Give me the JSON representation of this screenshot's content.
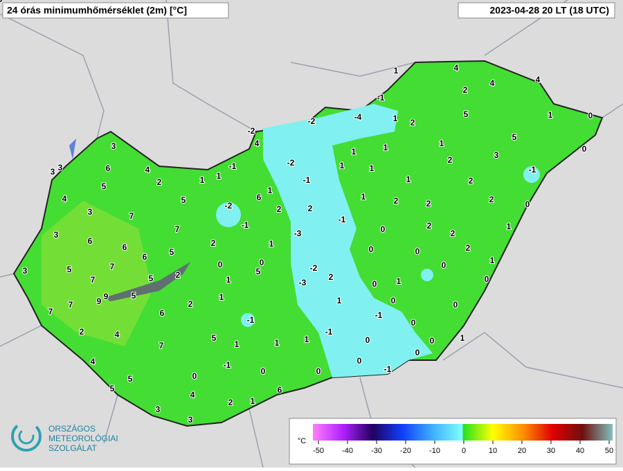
{
  "title": "24 órás minimumhőmérséklet (2m) [°C]",
  "timestamp": "2023-04-28 20 LT (18 UTC)",
  "logo": {
    "line1": "ORSZÁGOS",
    "line2": "METEOROLÓGIAI",
    "line3": "SZOLGÁLAT"
  },
  "colorbar": {
    "unit": "°C",
    "ticks": [
      -50,
      -40,
      -30,
      -20,
      -10,
      0,
      10,
      20,
      30,
      40,
      50
    ]
  },
  "stations": [
    1,
    4,
    2,
    4,
    4,
    -1,
    5,
    1,
    0,
    -4,
    1,
    2,
    -2,
    -2,
    5,
    0,
    4,
    1,
    1,
    1,
    2,
    3,
    1,
    -2,
    -1,
    1,
    -1,
    1,
    -1,
    2,
    1,
    6,
    2,
    1,
    2,
    2,
    2,
    0,
    -2,
    2,
    -1,
    -1,
    2,
    1,
    -3,
    0,
    2,
    1,
    2,
    0,
    0,
    2,
    0,
    0,
    1,
    0,
    5,
    -2,
    2,
    1,
    -3,
    0,
    1,
    0,
    1,
    1,
    0,
    0,
    -1,
    -1,
    0,
    -1,
    1,
    1,
    1,
    5,
    0,
    0,
    1,
    -1,
    0,
    0,
    0,
    0,
    -1,
    0,
    6,
    4,
    2,
    1,
    3,
    3,
    3,
    3,
    3,
    6,
    4,
    2,
    1,
    1,
    5,
    4,
    5,
    3,
    7,
    3,
    7,
    6,
    6,
    6,
    5,
    3,
    5,
    7,
    7,
    5,
    2,
    5,
    9,
    9,
    7,
    7,
    6,
    2,
    2,
    4,
    7,
    4,
    5,
    5,
    3
  ]
}
